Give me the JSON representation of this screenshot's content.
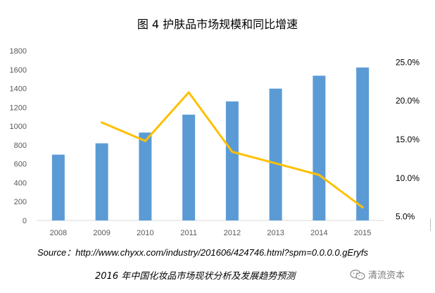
{
  "chart_data": {
    "type": "bar+line",
    "title": "图 4 护肤品市场规模和同比增速",
    "categories": [
      "2008",
      "2009",
      "2010",
      "2011",
      "2012",
      "2013",
      "2014",
      "2015"
    ],
    "series": [
      {
        "name": "市场规模",
        "type": "bar",
        "axis": "left",
        "values": [
          698,
          818,
          932,
          1122,
          1262,
          1398,
          1535,
          1622
        ]
      },
      {
        "name": "同比增速",
        "type": "line",
        "axis": "right",
        "values": [
          null,
          17.2,
          14.8,
          21.1,
          13.4,
          11.9,
          10.4,
          6.2
        ]
      }
    ],
    "left_axis": {
      "ylim": [
        0,
        1800
      ],
      "ticks": [
        "0",
        "200",
        "400",
        "600",
        "800",
        "1000",
        "1200",
        "1400",
        "1600",
        "1800"
      ]
    },
    "right_axis": {
      "ylim": [
        4.5,
        26.5
      ],
      "ticks": [
        "5.0%",
        "10.0%",
        "15.0%",
        "20.0%",
        "25.0%"
      ],
      "tick_values": [
        5,
        10,
        15,
        20,
        25
      ]
    },
    "colors": {
      "bar": "#5b9bd5",
      "line": "#ffc000",
      "axis": "#d9d9d9",
      "tick_text": "#595959"
    }
  },
  "source": "Source：http://www.chyxx.com/industry/201606/424746.html?spm=0.0.0.0.gEryfs",
  "caption": "2016 年中国化妆品市场现状分析及发展趋势预测",
  "watermark": {
    "icon": "wechat-icon",
    "text": "清流资本"
  }
}
